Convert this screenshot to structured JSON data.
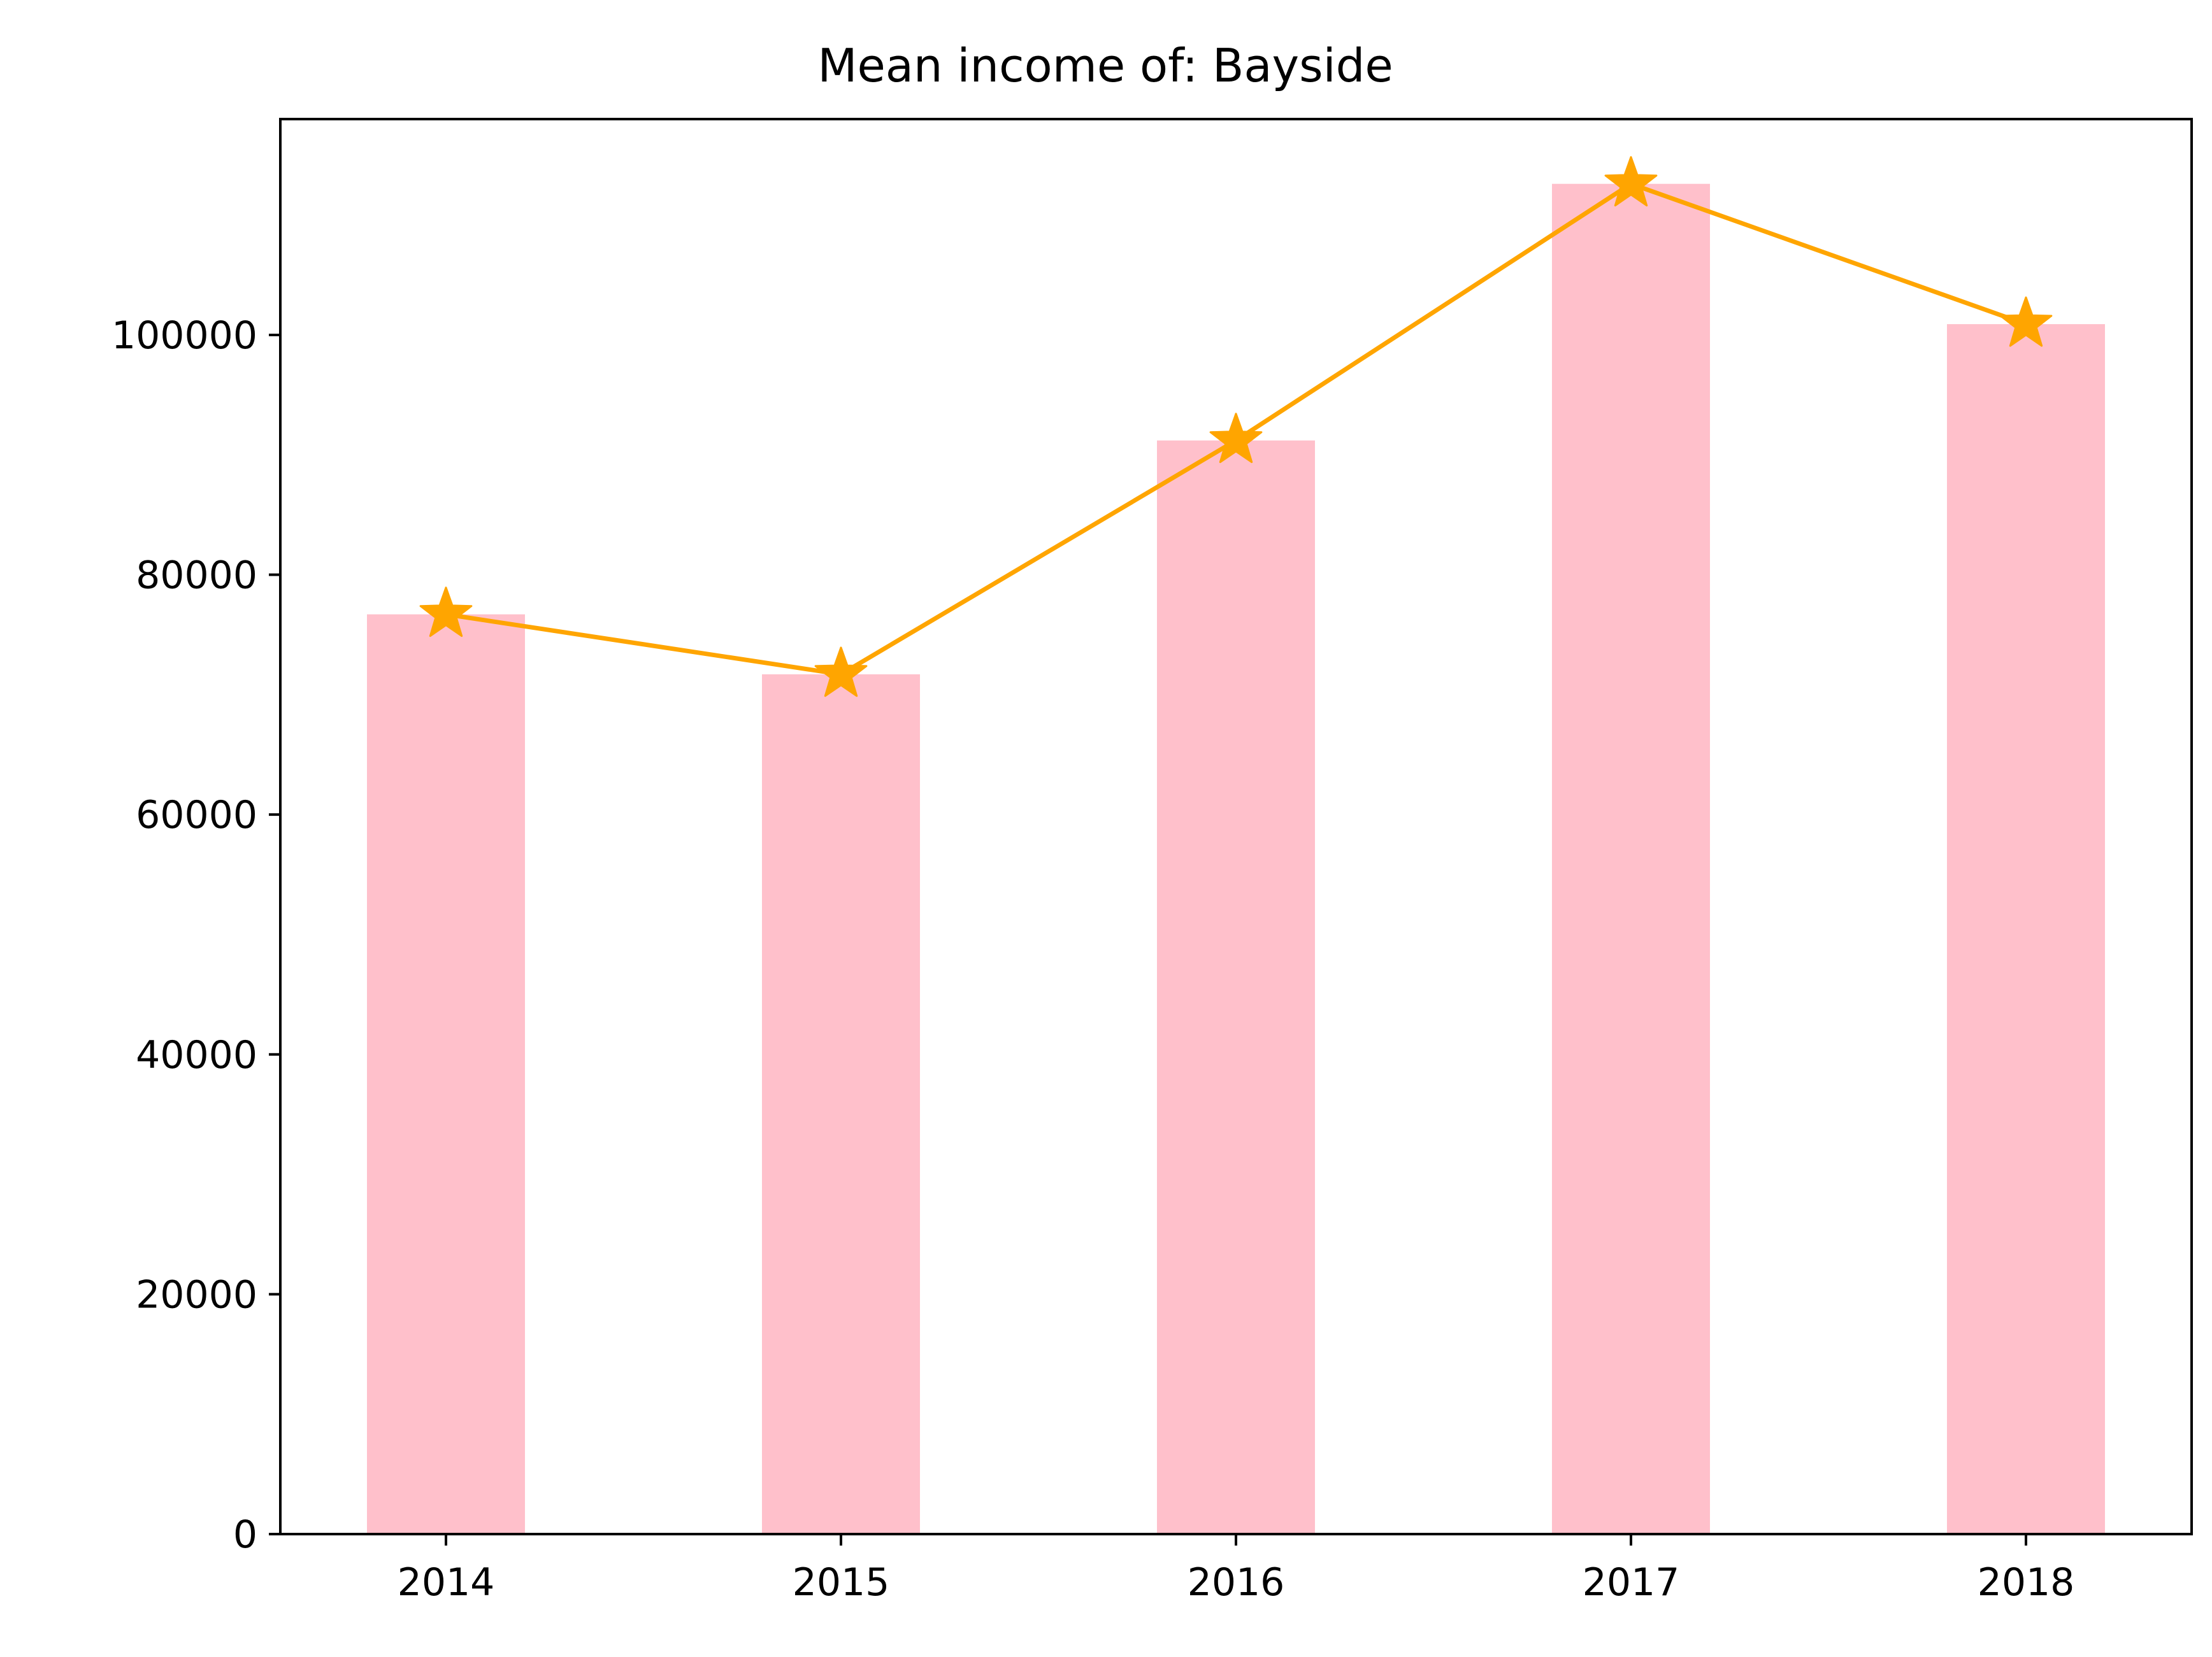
{
  "chart_data": {
    "type": "bar",
    "title": "Mean income of: Bayside",
    "xlabel": "",
    "ylabel": "",
    "categories": [
      "2014",
      "2015",
      "2016",
      "2017",
      "2018"
    ],
    "series": [
      {
        "type": "bar",
        "values": [
          76700,
          71700,
          91200,
          112600,
          100900
        ]
      },
      {
        "type": "line",
        "marker": "star",
        "values": [
          76700,
          71700,
          91200,
          112600,
          100900
        ]
      }
    ],
    "ylim": [
      0,
      118000
    ],
    "yticks": [
      0,
      20000,
      40000,
      60000,
      80000,
      100000
    ],
    "ytick_labels": [
      "0",
      "20000",
      "40000",
      "60000",
      "80000",
      "100000"
    ],
    "grid": false,
    "legend": "none",
    "colors": {
      "bar": "#ffc0cb",
      "line": "#ffa500",
      "axes": "#000000"
    }
  }
}
